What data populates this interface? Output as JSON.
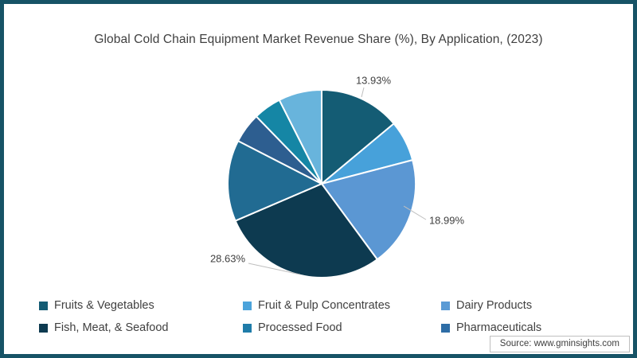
{
  "chart_data": {
    "type": "pie",
    "title": "Global Cold Chain Equipment Market Revenue Share (%), By Application, (2023)",
    "legend_position": "bottom",
    "slices": [
      {
        "label": "Fruits & Vegetables",
        "value": 13.93,
        "data_label": "13.93%",
        "color": "#145C74",
        "estimated": false
      },
      {
        "label": "Fruit & Pulp Concentrates",
        "value": 7.0,
        "color": "#47A1DA",
        "estimated": true
      },
      {
        "label": "Dairy Products",
        "value": 18.99,
        "data_label": "18.99%",
        "color": "#5B97D3",
        "estimated": false
      },
      {
        "label": "Fish, Meat, & Seafood",
        "value": 28.63,
        "data_label": "28.63%",
        "color": "#0D3A50",
        "estimated": false
      },
      {
        "label": "Processed Food",
        "value": 14.0,
        "color": "#216B92",
        "estimated": true
      },
      {
        "label": "Pharmaceuticals",
        "value": 5.2,
        "color": "#2D5E90",
        "estimated": true
      },
      {
        "label": "",
        "value": 4.8,
        "color": "#1586A5",
        "estimated": true
      },
      {
        "label": "",
        "value": 7.45,
        "color": "#68B4DC",
        "estimated": true
      }
    ],
    "legend": [
      {
        "label": "Fruits & Vegetables",
        "color": "#145C74"
      },
      {
        "label": "Fruit & Pulp Concentrates",
        "color": "#4BA3DB"
      },
      {
        "label": "Dairy Products",
        "color": "#5B9BD5"
      },
      {
        "label": "Fish, Meat, & Seafood",
        "color": "#0D3A50"
      },
      {
        "label": "Processed Food",
        "color": "#1F7CA9"
      },
      {
        "label": "Pharmaceuticals",
        "color": "#2E6DA6"
      }
    ]
  },
  "footer": {
    "source": "Source: www.gminsights.com"
  },
  "colors": {
    "frame_border": "#165366",
    "slice_divider": "#FFFFFF",
    "leader_line": "#BFBFBF",
    "title_text": "#3F3F3F",
    "label_text": "#404040"
  }
}
